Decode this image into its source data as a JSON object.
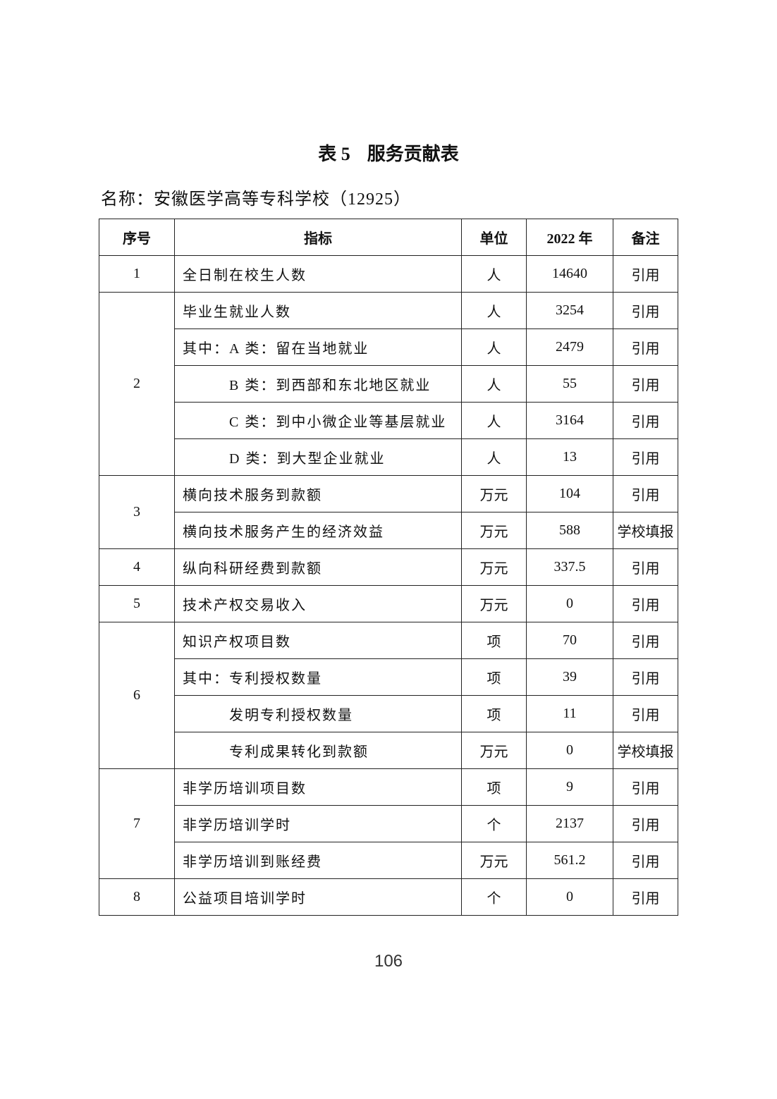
{
  "title": {
    "prefix": "表 5",
    "text": "服务贡献表"
  },
  "name_line": "名称：安徽医学高等专科学校（12925）",
  "headers": [
    "序号",
    "指标",
    "单位",
    "2022 年",
    "备注"
  ],
  "groups": [
    {
      "no": "1",
      "rows": [
        {
          "indicator": "全日制在校生人数",
          "indent": 0,
          "unit": "人",
          "value": "14640",
          "note": "引用"
        }
      ]
    },
    {
      "no": "2",
      "rows": [
        {
          "indicator": "毕业生就业人数",
          "indent": 0,
          "unit": "人",
          "value": "3254",
          "note": "引用"
        },
        {
          "indicator": "其中：A 类：留在当地就业",
          "indent": 0,
          "unit": "人",
          "value": "2479",
          "note": "引用"
        },
        {
          "indicator": "B 类：到西部和东北地区就业",
          "indent": 1,
          "unit": "人",
          "value": "55",
          "note": "引用"
        },
        {
          "indicator": "C 类：到中小微企业等基层就业",
          "indent": 1,
          "unit": "人",
          "value": "3164",
          "note": "引用"
        },
        {
          "indicator": "D 类：到大型企业就业",
          "indent": 1,
          "unit": "人",
          "value": "13",
          "note": "引用"
        }
      ]
    },
    {
      "no": "3",
      "rows": [
        {
          "indicator": "横向技术服务到款额",
          "indent": 0,
          "unit": "万元",
          "value": "104",
          "note": "引用"
        },
        {
          "indicator": "横向技术服务产生的经济效益",
          "indent": 0,
          "unit": "万元",
          "value": "588",
          "note": "学校填报"
        }
      ]
    },
    {
      "no": "4",
      "rows": [
        {
          "indicator": "纵向科研经费到款额",
          "indent": 0,
          "unit": "万元",
          "value": "337.5",
          "note": "引用"
        }
      ]
    },
    {
      "no": "5",
      "rows": [
        {
          "indicator": "技术产权交易收入",
          "indent": 0,
          "unit": "万元",
          "value": "0",
          "note": "引用"
        }
      ]
    },
    {
      "no": "6",
      "rows": [
        {
          "indicator": "知识产权项目数",
          "indent": 0,
          "unit": "项",
          "value": "70",
          "note": "引用"
        },
        {
          "indicator": "其中：专利授权数量",
          "indent": 0,
          "unit": "项",
          "value": "39",
          "note": "引用"
        },
        {
          "indicator": "发明专利授权数量",
          "indent": 1,
          "unit": "项",
          "value": "11",
          "note": "引用"
        },
        {
          "indicator": "专利成果转化到款额",
          "indent": 1,
          "unit": "万元",
          "value": "0",
          "note": "学校填报"
        }
      ]
    },
    {
      "no": "7",
      "rows": [
        {
          "indicator": "非学历培训项目数",
          "indent": 0,
          "unit": "项",
          "value": "9",
          "note": "引用"
        },
        {
          "indicator": "非学历培训学时",
          "indent": 0,
          "unit": "个",
          "value": "2137",
          "note": "引用"
        },
        {
          "indicator": "非学历培训到账经费",
          "indent": 0,
          "unit": "万元",
          "value": "561.2",
          "note": "引用"
        }
      ]
    },
    {
      "no": "8",
      "rows": [
        {
          "indicator": "公益项目培训学时",
          "indent": 0,
          "unit": "个",
          "value": "0",
          "note": "引用"
        }
      ]
    }
  ],
  "page_number": "106"
}
